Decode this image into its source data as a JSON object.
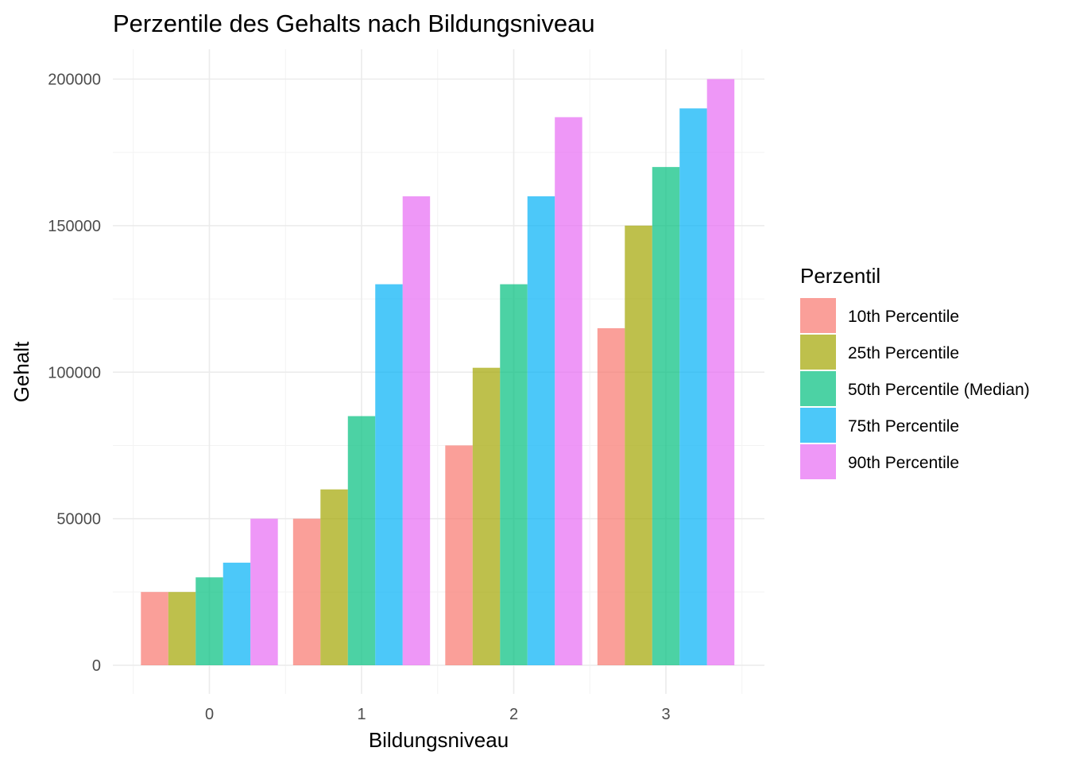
{
  "chart_data": {
    "type": "bar",
    "title": "Perzentile des Gehalts nach Bildungsniveau",
    "xlabel": "Bildungsniveau",
    "ylabel": "Gehalt",
    "categories": [
      "0",
      "1",
      "2",
      "3"
    ],
    "ylim": [
      -8000,
      210000
    ],
    "yticks": [
      0,
      50000,
      100000,
      150000,
      200000
    ],
    "ytick_labels": [
      "0",
      "50000",
      "100000",
      "150000",
      "200000"
    ],
    "grid": true,
    "legend": {
      "title": "Perzentil",
      "position": "right"
    },
    "series": [
      {
        "name": "10th Percentile",
        "color": "#F8766D",
        "values": [
          25000,
          50000,
          75000,
          115000
        ]
      },
      {
        "name": "25th Percentile",
        "color": "#A3A500",
        "values": [
          25000,
          60000,
          101500,
          150000
        ]
      },
      {
        "name": "50th Percentile (Median)",
        "color": "#00BF7D",
        "values": [
          30000,
          85000,
          130000,
          170000
        ]
      },
      {
        "name": "75th Percentile",
        "color": "#00B0F6",
        "values": [
          35000,
          130000,
          160000,
          190000
        ]
      },
      {
        "name": "90th Percentile",
        "color": "#E76BF3",
        "values": [
          50000,
          160000,
          187000,
          200000
        ]
      }
    ],
    "bar_opacity": 0.7
  }
}
